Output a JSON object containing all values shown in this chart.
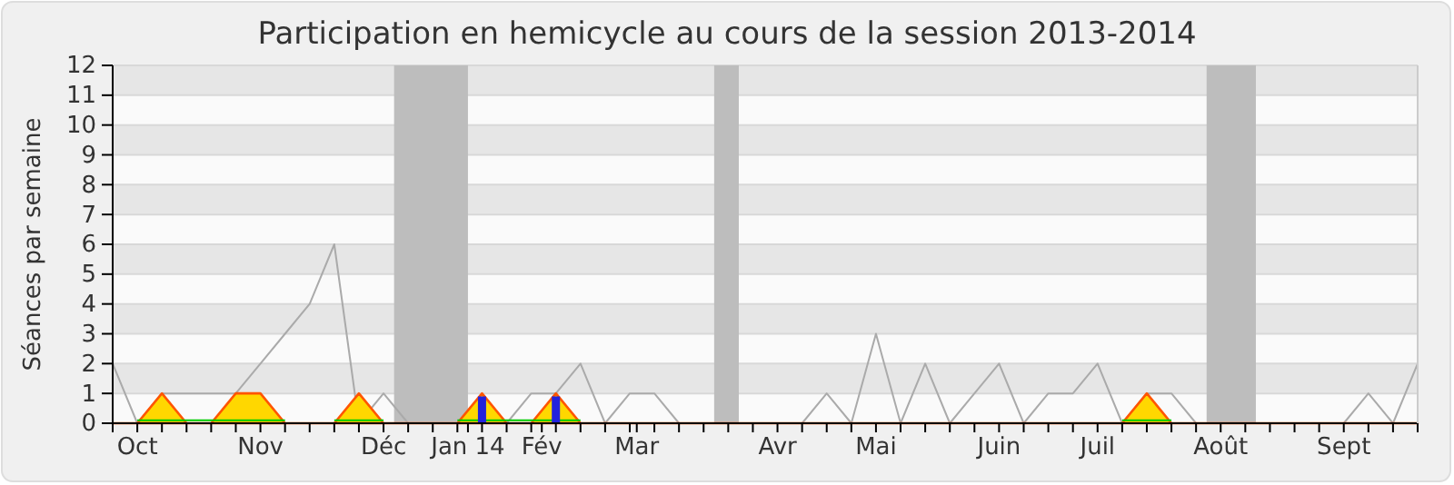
{
  "chart_data": {
    "type": "line",
    "title": "Participation en hemicycle au cours de la session 2013-2014",
    "ylabel": "Séances par semaine",
    "x": [
      "2013-10-07",
      "2013-10-14",
      "2013-10-21",
      "2013-10-28",
      "2013-11-04",
      "2013-11-11",
      "2013-11-18",
      "2013-11-25",
      "2013-12-02",
      "2013-12-09",
      "2013-12-16",
      "2013-12-23",
      "2013-12-30",
      "2014-01-06",
      "2014-01-13",
      "2014-01-20",
      "2014-01-27",
      "2014-02-03",
      "2014-02-10",
      "2014-02-17",
      "2014-02-24",
      "2014-03-03",
      "2014-03-10",
      "2014-03-17",
      "2014-03-24",
      "2014-03-31",
      "2014-04-07",
      "2014-04-14",
      "2014-04-21",
      "2014-04-28",
      "2014-05-05",
      "2014-05-12",
      "2014-05-19",
      "2014-05-26",
      "2014-06-02",
      "2014-06-09",
      "2014-06-16",
      "2014-06-23",
      "2014-06-30",
      "2014-07-07",
      "2014-07-14",
      "2014-07-21",
      "2014-07-28",
      "2014-08-04",
      "2014-08-11",
      "2014-08-18",
      "2014-08-25",
      "2014-09-01",
      "2014-09-08",
      "2014-09-15",
      "2014-09-22",
      "2014-09-29",
      "2014-10-06",
      "2014-10-13"
    ],
    "xlim": [
      "2013-10-07",
      "2014-10-13"
    ],
    "xticks": [
      {
        "value": "2013-10-07",
        "label": null
      },
      {
        "value": "2013-10-14",
        "label": "Oct"
      },
      {
        "value": "2013-10-21",
        "label": null
      },
      {
        "value": "2013-10-28",
        "label": null
      },
      {
        "value": "2013-11-04",
        "label": null
      },
      {
        "value": "2013-11-11",
        "label": null
      },
      {
        "value": "2013-11-18",
        "label": "Nov"
      },
      {
        "value": "2013-11-25",
        "label": null
      },
      {
        "value": "2013-12-02",
        "label": null
      },
      {
        "value": "2013-12-09",
        "label": null
      },
      {
        "value": "2013-12-16",
        "label": null
      },
      {
        "value": "2013-12-23",
        "label": "Déc"
      },
      {
        "value": "2013-12-30",
        "label": null
      },
      {
        "value": "2014-01-06",
        "label": null
      },
      {
        "value": "2014-01-13",
        "label": null
      },
      {
        "value": "2014-01-16",
        "label": "Jan 14"
      },
      {
        "value": "2014-01-20",
        "label": null
      },
      {
        "value": "2014-01-27",
        "label": null
      },
      {
        "value": "2014-02-03",
        "label": null
      },
      {
        "value": "2014-02-06",
        "label": "Fév"
      },
      {
        "value": "2014-02-10",
        "label": null
      },
      {
        "value": "2014-02-17",
        "label": null
      },
      {
        "value": "2014-02-24",
        "label": null
      },
      {
        "value": "2014-03-03",
        "label": null
      },
      {
        "value": "2014-03-05",
        "label": "Mar"
      },
      {
        "value": "2014-03-10",
        "label": null
      },
      {
        "value": "2014-03-17",
        "label": null
      },
      {
        "value": "2014-03-24",
        "label": null
      },
      {
        "value": "2014-03-31",
        "label": null
      },
      {
        "value": "2014-04-07",
        "label": null
      },
      {
        "value": "2014-04-14",
        "label": "Avr"
      },
      {
        "value": "2014-04-21",
        "label": null
      },
      {
        "value": "2014-04-28",
        "label": null
      },
      {
        "value": "2014-05-05",
        "label": null
      },
      {
        "value": "2014-05-12",
        "label": "Mai"
      },
      {
        "value": "2014-05-19",
        "label": null
      },
      {
        "value": "2014-05-26",
        "label": null
      },
      {
        "value": "2014-06-02",
        "label": null
      },
      {
        "value": "2014-06-09",
        "label": null
      },
      {
        "value": "2014-06-16",
        "label": "Juin"
      },
      {
        "value": "2014-06-23",
        "label": null
      },
      {
        "value": "2014-06-30",
        "label": null
      },
      {
        "value": "2014-07-07",
        "label": null
      },
      {
        "value": "2014-07-14",
        "label": "Juil"
      },
      {
        "value": "2014-07-21",
        "label": null
      },
      {
        "value": "2014-07-28",
        "label": null
      },
      {
        "value": "2014-08-04",
        "label": null
      },
      {
        "value": "2014-08-11",
        "label": null
      },
      {
        "value": "2014-08-18",
        "label": "Août"
      },
      {
        "value": "2014-08-25",
        "label": null
      },
      {
        "value": "2014-09-01",
        "label": null
      },
      {
        "value": "2014-09-08",
        "label": null
      },
      {
        "value": "2014-09-15",
        "label": null
      },
      {
        "value": "2014-09-22",
        "label": "Sept"
      },
      {
        "value": "2014-09-29",
        "label": null
      },
      {
        "value": "2014-10-06",
        "label": null
      },
      {
        "value": "2014-10-13",
        "label": null
      }
    ],
    "ylim": [
      0,
      12
    ],
    "yticks": [
      0,
      1,
      2,
      3,
      4,
      5,
      6,
      7,
      8,
      9,
      10,
      11,
      12
    ],
    "grid": "y",
    "bands": [
      {
        "axis": "x",
        "from": "2013-12-26",
        "to": "2014-01-16",
        "color": "#bdbdbd"
      },
      {
        "axis": "x",
        "from": "2014-03-27",
        "to": "2014-04-03",
        "color": "#bdbdbd"
      },
      {
        "axis": "x",
        "from": "2014-08-14",
        "to": "2014-08-28",
        "color": "#bdbdbd"
      }
    ],
    "series": [
      {
        "color": "#aaaaaa",
        "values": [
          2,
          0,
          1,
          1,
          1,
          1,
          2,
          3,
          4,
          6,
          0,
          1,
          0,
          0,
          0,
          0,
          0,
          1,
          1,
          2,
          0,
          1,
          1,
          0,
          0,
          0,
          0,
          0,
          0,
          1,
          0,
          3,
          0,
          2,
          0,
          1,
          2,
          0,
          1,
          1,
          2,
          0,
          1,
          1,
          0,
          0,
          0,
          0,
          0,
          0,
          0,
          1,
          0,
          2
        ]
      },
      {
        "type": "area",
        "color": "#ffd700",
        "values": [
          0,
          0,
          1,
          0,
          0,
          1,
          1,
          0,
          0,
          0,
          1,
          0,
          0,
          0,
          0,
          1,
          0,
          0,
          1,
          0,
          0,
          0,
          0,
          0,
          0,
          0,
          0,
          0,
          0,
          0,
          0,
          0,
          0,
          0,
          0,
          0,
          0,
          0,
          0,
          0,
          0,
          0,
          1,
          0,
          0,
          0,
          0,
          0,
          0,
          0,
          0,
          0,
          0,
          0
        ]
      },
      {
        "type": "line",
        "color": "#00cc00",
        "values": [
          null,
          0.1,
          0.1,
          0.1,
          0.1,
          0.1,
          0.1,
          0.1,
          null,
          0.1,
          0.1,
          0.1,
          null,
          null,
          0.1,
          0.1,
          0.1,
          0.1,
          0.1,
          0.1,
          null,
          null,
          null,
          null,
          null,
          null,
          null,
          null,
          null,
          null,
          null,
          null,
          null,
          null,
          null,
          null,
          null,
          null,
          null,
          null,
          null,
          0.1,
          0.1,
          0.1,
          null,
          null,
          null,
          null,
          null,
          null,
          null,
          null,
          null,
          null
        ]
      },
      {
        "type": "bar",
        "color": "#2222dd",
        "x": [
          "2014-01-20",
          "2014-02-10"
        ],
        "values": [
          0.9,
          0.9
        ]
      }
    ]
  }
}
